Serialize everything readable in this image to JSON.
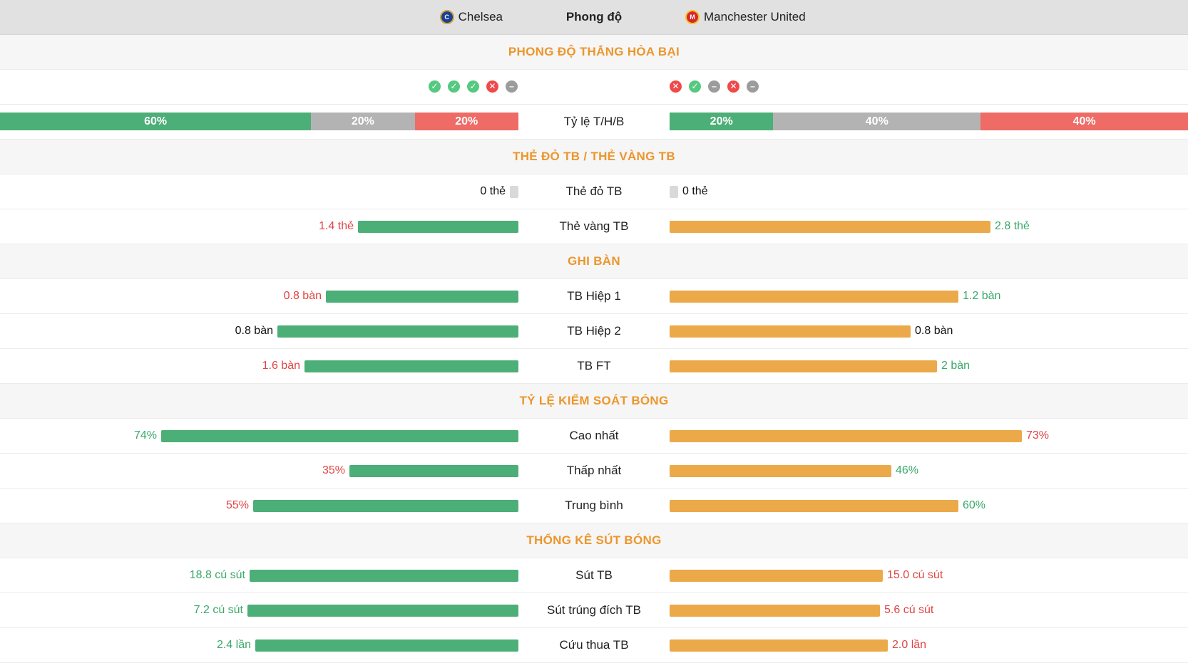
{
  "header": {
    "home_team": "Chelsea",
    "center": "Phong độ",
    "away_team": "Manchester United"
  },
  "colors": {
    "home_bar": "#4caf77",
    "away_bar": "#eba94a",
    "section_title": "#ec962c",
    "win": "#55c980",
    "loss": "#ef4a4a",
    "draw": "#9c9c9c"
  },
  "sections": {
    "form": "PHONG ĐỘ THẮNG HÒA BẠI",
    "cards": "THẺ ĐỎ TB / THẺ VÀNG TB",
    "goals": "GHI BÀN",
    "possession": "TỶ LỆ KIỂM SOÁT BÓNG",
    "shots": "THỐNG KÊ SÚT BÓNG"
  },
  "form": {
    "home": [
      "W",
      "W",
      "W",
      "L",
      "D"
    ],
    "away": [
      "L",
      "W",
      "D",
      "L",
      "D"
    ]
  },
  "ratio": {
    "label": "Tỷ lệ T/H/B",
    "home": {
      "win": "60%",
      "draw": "20%",
      "loss": "20%"
    },
    "away": {
      "win": "20%",
      "draw": "40%",
      "loss": "40%"
    }
  },
  "rows": {
    "red": {
      "label": "Thẻ đỏ TB",
      "home": "0 thẻ",
      "away": "0 thẻ",
      "home_ratio": 0,
      "away_ratio": 0
    },
    "yellow": {
      "label": "Thẻ vàng TB",
      "home": "1.4 thẻ",
      "away": "2.8 thẻ",
      "home_ratio": 0.33,
      "away_ratio": 0.66
    },
    "h1": {
      "label": "TB Hiệp 1",
      "home": "0.8 bàn",
      "away": "1.2 bàn",
      "home_ratio": 0.4,
      "away_ratio": 0.6
    },
    "h2": {
      "label": "TB Hiệp 2",
      "home": "0.8 bàn",
      "away": "0.8 bàn",
      "home_ratio": 0.5,
      "away_ratio": 0.5
    },
    "ft": {
      "label": "TB FT",
      "home": "1.6 bàn",
      "away": "2 bàn",
      "home_ratio": 0.44,
      "away_ratio": 0.56
    },
    "pmax": {
      "label": "Cao nhất",
      "home": "74%",
      "away": "73%",
      "home_ratio": 0.74,
      "away_ratio": 0.73
    },
    "pmin": {
      "label": "Thấp nhất",
      "home": "35%",
      "away": "46%",
      "home_ratio": 0.35,
      "away_ratio": 0.46
    },
    "pavg": {
      "label": "Trung bình",
      "home": "55%",
      "away": "60%",
      "home_ratio": 0.55,
      "away_ratio": 0.6
    },
    "shots": {
      "label": "Sút TB",
      "home": "18.8 cú sút",
      "away": "15.0 cú sút",
      "home_ratio": 0.56,
      "away_ratio": 0.44
    },
    "sot": {
      "label": "Sút trúng đích TB",
      "home": "7.2 cú sút",
      "away": "5.6 cú sút",
      "home_ratio": 0.56,
      "away_ratio": 0.44
    },
    "saves": {
      "label": "Cứu thua TB",
      "home": "2.4 lần",
      "away": "2.0 lần",
      "home_ratio": 0.55,
      "away_ratio": 0.45
    }
  }
}
